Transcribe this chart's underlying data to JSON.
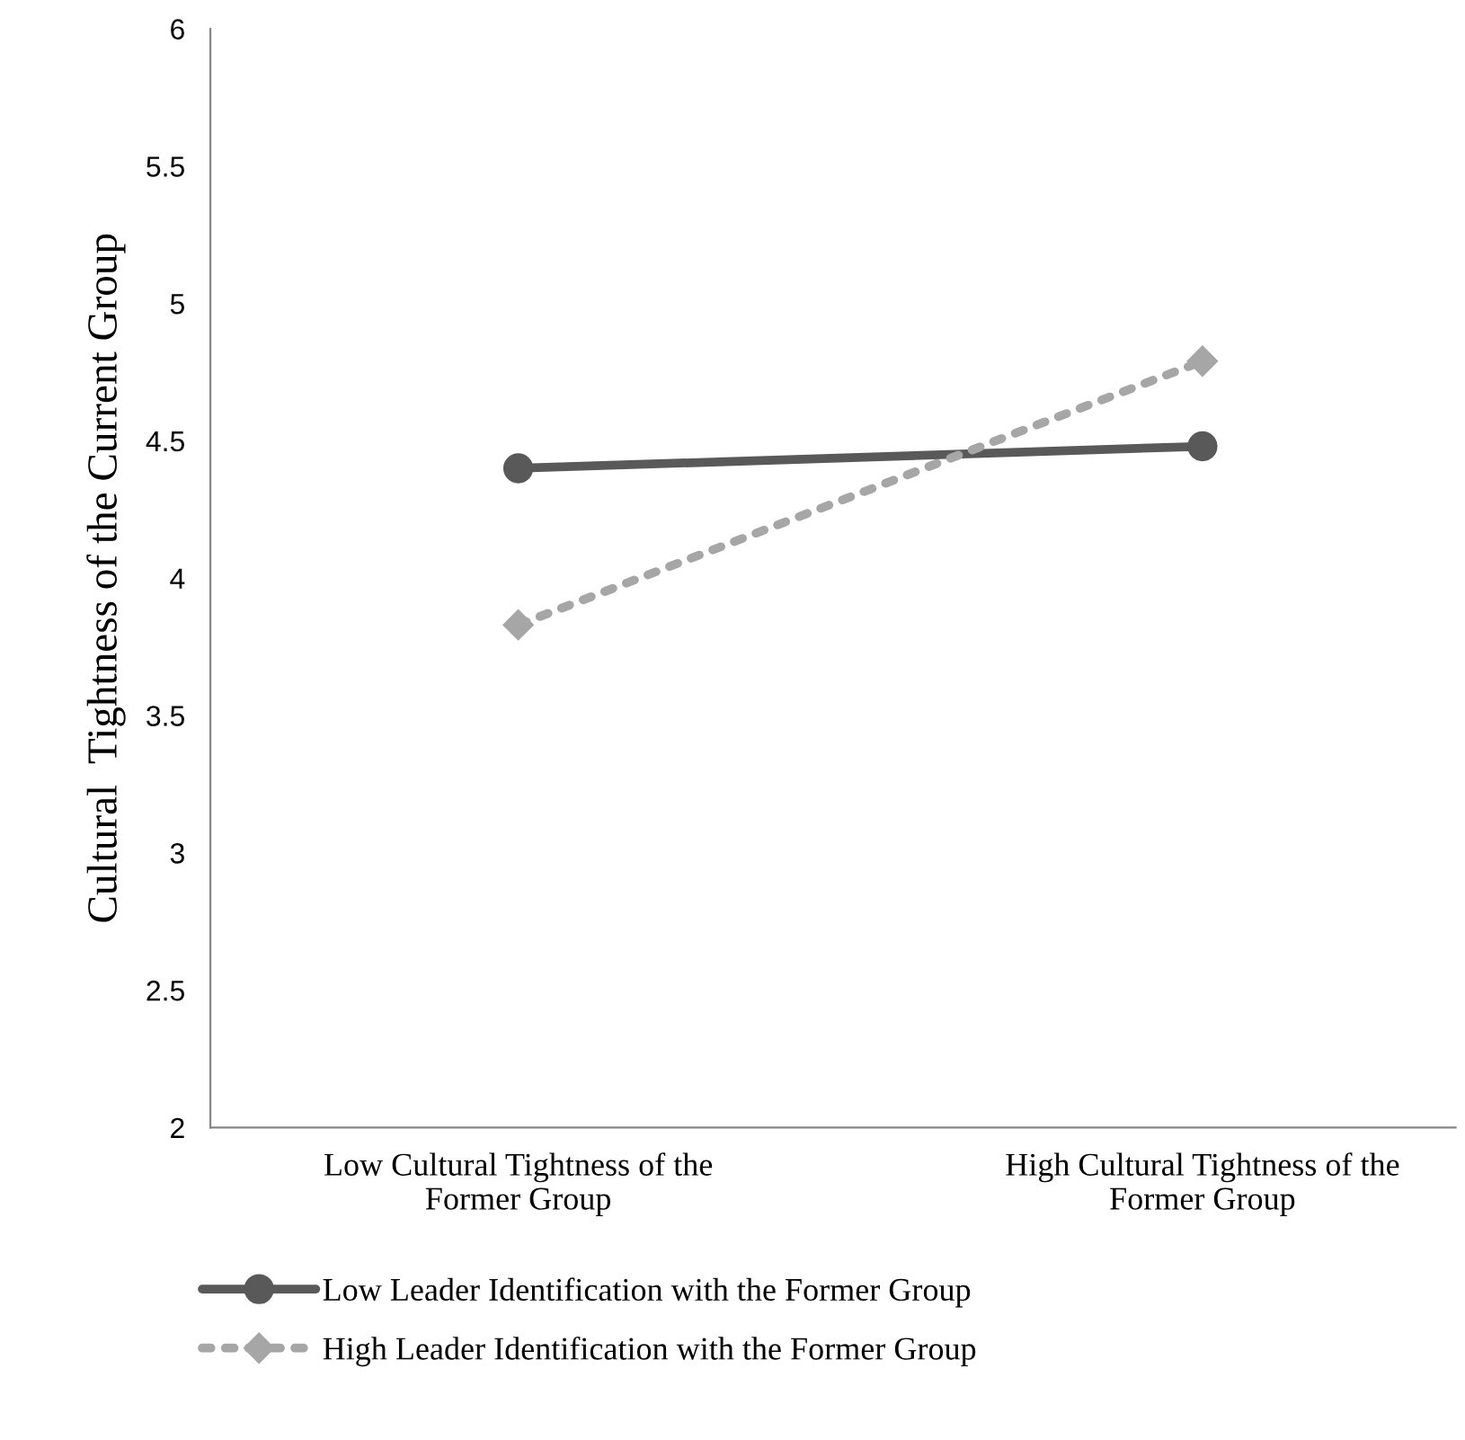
{
  "chart_data": {
    "type": "line",
    "ylabel": "Cultural  Tightness of the Current Group",
    "categories": [
      "Low Cultural Tightness of the\nFormer Group",
      "High Cultural Tightness of the\nFormer Group"
    ],
    "series": [
      {
        "name": "Low Leader Identification with the Former Group",
        "color": "#595959",
        "values": [
          4.4,
          4.48
        ],
        "marker": "circle",
        "line_style": "solid"
      },
      {
        "name": "High Leader Identification with the Former Group",
        "color": "#a6a6a6",
        "values": [
          3.83,
          4.79
        ],
        "marker": "diamond",
        "line_style": "dotted"
      }
    ],
    "ylim": [
      2,
      6
    ],
    "yticks": [
      2,
      2.5,
      3,
      3.5,
      4,
      4.5,
      5,
      5.5,
      6
    ],
    "grid": false,
    "legend": "bottom"
  }
}
